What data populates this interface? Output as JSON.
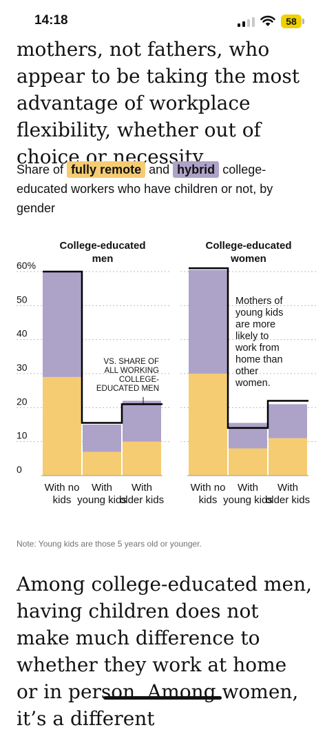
{
  "status_bar": {
    "time": "14:18",
    "battery": "58"
  },
  "article": {
    "top_paragraph": "mothers, not fathers, who appear to be taking the most advantage of workplace flexibility, whether out of choice or necessity.",
    "bottom_paragraph": "Among college-educated men, having children does not make much difference to whether they work at home or in person. Among women, it’s a different"
  },
  "graphic": {
    "subtitle_prefix": "Share of",
    "legend_remote": "fully remote",
    "subtitle_and": "and",
    "legend_hybrid": "hybrid",
    "subtitle_suffix": "college-educated workers who have children or not, by gender",
    "note": "Note: Young kids are those 5 years old or younger."
  },
  "colors": {
    "fully_remote": "#f5cc72",
    "hybrid": "#ada2c8",
    "benchmark_line": "#000000",
    "grid": "#bbbbbb"
  },
  "chart_data": [
    {
      "type": "bar",
      "stacked": true,
      "title": "College-educated men",
      "categories": [
        "With no kids",
        "With young kids",
        "With older kids"
      ],
      "series": [
        {
          "name": "fully remote",
          "values": [
            29,
            7,
            10
          ]
        },
        {
          "name": "hybrid",
          "values": [
            31,
            8,
            12
          ]
        }
      ],
      "benchmark": {
        "label": "VS. SHARE OF ALL WORKING COLLEGE-EDUCATED MEN",
        "values": [
          60,
          15.5,
          21
        ]
      },
      "yticks": [
        "60%",
        "50",
        "40",
        "30",
        "20",
        "10",
        "0"
      ],
      "ylim": [
        0,
        62
      ],
      "grid": true
    },
    {
      "type": "bar",
      "stacked": true,
      "title": "College-educated women",
      "categories": [
        "With no kids",
        "With young kids",
        "With older kids"
      ],
      "series": [
        {
          "name": "fully remote",
          "values": [
            30,
            8,
            11
          ]
        },
        {
          "name": "hybrid",
          "values": [
            30.5,
            7.5,
            10
          ]
        }
      ],
      "benchmark": {
        "label": "",
        "values": [
          61,
          14,
          22
        ]
      },
      "annotation": "Mothers of young kids are more likely to work from home than other women.",
      "ylim": [
        0,
        62
      ],
      "grid": true
    }
  ]
}
